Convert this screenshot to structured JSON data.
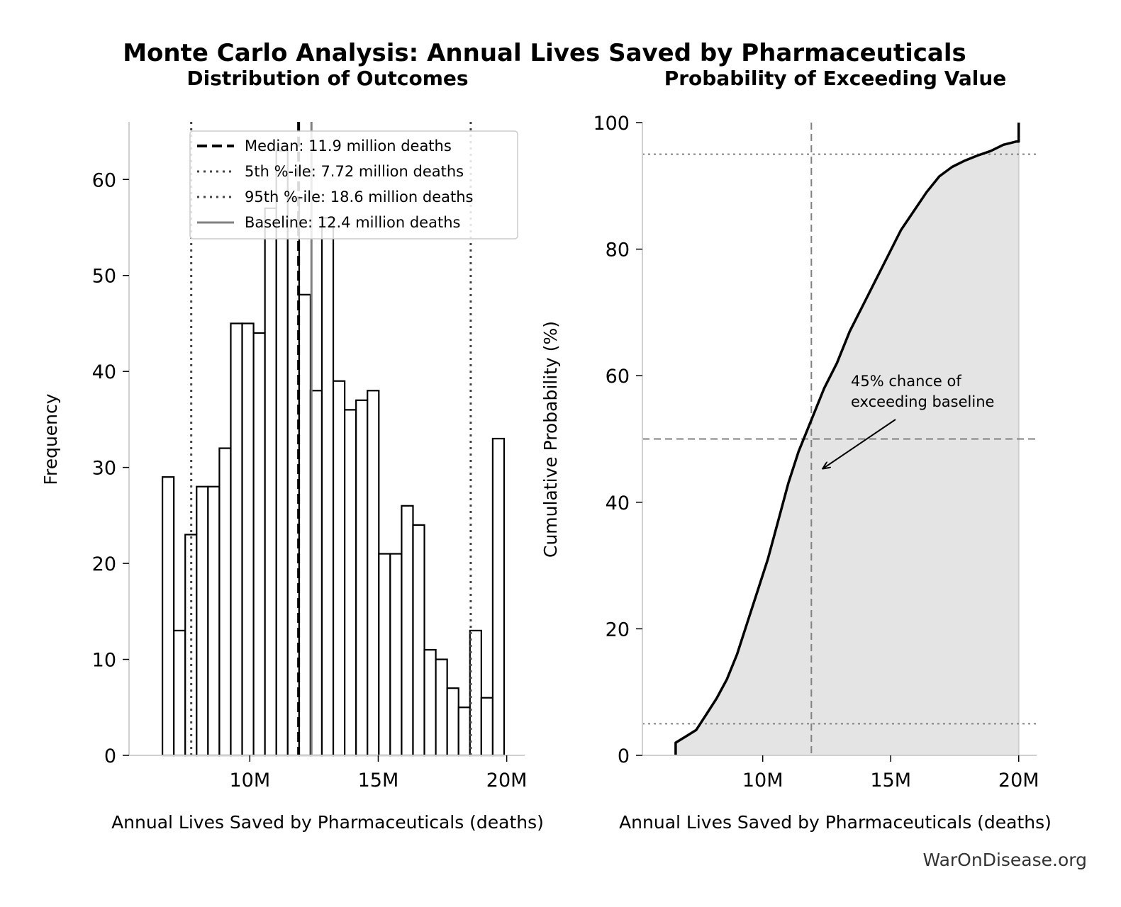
{
  "figure": {
    "title": "Monte Carlo Analysis: Annual Lives Saved by Pharmaceuticals",
    "source": "WarOnDisease.org"
  },
  "chart_data": [
    {
      "type": "bar",
      "title": "Distribution of Outcomes",
      "xlabel": "Annual Lives Saved by Pharmaceuticals (deaths)",
      "ylabel": "Frequency",
      "xlim": [
        5.3,
        20.7
      ],
      "ylim": [
        0,
        66
      ],
      "x_ticks": [
        10,
        15,
        20
      ],
      "x_tick_labels": [
        "10M",
        "15M",
        "20M"
      ],
      "y_ticks": [
        0,
        10,
        20,
        30,
        40,
        50,
        60
      ],
      "y_tick_labels": [
        "0",
        "10",
        "20",
        "30",
        "40",
        "50",
        "60"
      ],
      "bin_start": 6.6,
      "bin_width": 0.4433,
      "values": [
        29,
        13,
        23,
        28,
        28,
        32,
        45,
        45,
        44,
        57,
        63,
        58,
        48,
        38,
        56,
        39,
        36,
        37,
        38,
        21,
        21,
        26,
        24,
        11,
        10,
        7,
        5,
        13,
        6,
        33
      ],
      "reference_lines": [
        {
          "label": "Median: 11.9 million deaths",
          "x": 11.9,
          "style": "dashed",
          "color": "#000000"
        },
        {
          "label": "5th %-ile: 7.72 million deaths",
          "x": 7.72,
          "style": "dotted",
          "color": "#444444"
        },
        {
          "label": "95th %-ile: 18.6 million deaths",
          "x": 18.6,
          "style": "dotted",
          "color": "#444444"
        },
        {
          "label": "Baseline: 12.4 million deaths",
          "x": 12.4,
          "style": "solid",
          "color": "#808080"
        }
      ],
      "legend_position": "top-right",
      "grid": false
    },
    {
      "type": "area",
      "title": "Probability of Exceeding Value",
      "xlabel": "Annual Lives Saved by Pharmaceuticals (deaths)",
      "ylabel": "Cumulative Probability (%)",
      "xlim": [
        5.3,
        20.7
      ],
      "ylim": [
        0,
        100
      ],
      "x_ticks": [
        10,
        15,
        20
      ],
      "x_tick_labels": [
        "10M",
        "15M",
        "20M"
      ],
      "y_ticks": [
        0,
        20,
        40,
        60,
        80,
        100
      ],
      "y_tick_labels": [
        "0",
        "20",
        "40",
        "60",
        "80",
        "100"
      ],
      "series": [
        {
          "x": [
            6.6,
            6.6,
            7.0,
            7.4,
            7.8,
            8.2,
            8.6,
            9.0,
            9.4,
            9.8,
            10.2,
            10.6,
            11.0,
            11.4,
            11.9,
            12.4,
            12.9,
            13.4,
            13.9,
            14.4,
            14.9,
            15.4,
            15.9,
            16.4,
            16.9,
            17.4,
            17.9,
            18.4,
            18.9,
            19.4,
            19.9,
            20.0,
            20.0
          ],
          "y": [
            0,
            2,
            3,
            4,
            6.5,
            9,
            12,
            16,
            21,
            26,
            31,
            37,
            43,
            48,
            53,
            58,
            62,
            67,
            71,
            75,
            79,
            83,
            86,
            89,
            91.5,
            93,
            94,
            94.8,
            95.5,
            96.5,
            97,
            97,
            100
          ]
        }
      ],
      "reference_lines": [
        {
          "orientation": "vertical",
          "x": 11.9,
          "style": "dashed",
          "color": "#808080"
        },
        {
          "orientation": "horizontal",
          "y": 50,
          "style": "dashed",
          "color": "#808080"
        },
        {
          "orientation": "horizontal",
          "y": 5,
          "style": "dotted",
          "color": "#808080"
        },
        {
          "orientation": "horizontal",
          "y": 95,
          "style": "dotted",
          "color": "#808080"
        }
      ],
      "annotation": {
        "text_line1": "45% chance of",
        "text_line2": "exceeding baseline",
        "point_x": 12.5,
        "point_y": 45
      },
      "grid": false
    }
  ]
}
